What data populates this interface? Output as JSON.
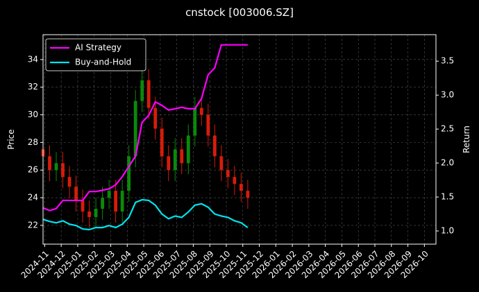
{
  "chart_data": {
    "type": "candlestick",
    "title": "cnstock [003006.SZ]",
    "ylabel": "Price",
    "y2label": "Return",
    "x": [
      -0.1,
      0.3,
      0.7,
      1.1,
      1.5,
      1.9,
      2.3,
      2.7,
      3.1,
      3.5,
      3.9,
      4.3,
      4.7,
      5.1,
      5.5,
      5.9,
      6.3,
      6.7,
      7.1,
      7.5,
      7.9,
      8.3,
      8.7,
      9.1,
      9.5,
      9.9,
      10.3,
      10.7,
      11.1,
      11.5,
      11.9,
      12.3
    ],
    "open": [
      27.5,
      27.0,
      26.0,
      26.5,
      25.5,
      24.8,
      23.8,
      23.0,
      22.6,
      23.2,
      24.0,
      24.5,
      23.0,
      24.5,
      27.0,
      31.0,
      32.5,
      30.5,
      29.0,
      27.0,
      26.0,
      27.5,
      26.5,
      28.5,
      30.5,
      30.0,
      28.5,
      27.0,
      26.0,
      25.5,
      25.0,
      24.5
    ],
    "high": [
      28.3,
      27.8,
      27.3,
      27.3,
      26.3,
      25.6,
      24.6,
      23.8,
      24.0,
      24.8,
      25.3,
      25.3,
      25.3,
      27.8,
      31.8,
      33.3,
      33.3,
      31.3,
      29.8,
      27.8,
      28.3,
      28.3,
      29.3,
      31.3,
      31.3,
      30.8,
      29.3,
      27.8,
      26.8,
      26.3,
      25.8,
      25.3
    ],
    "low": [
      26.2,
      25.2,
      25.2,
      24.7,
      24.0,
      23.0,
      22.2,
      21.8,
      21.8,
      22.4,
      23.2,
      22.2,
      22.2,
      23.7,
      26.2,
      30.2,
      29.7,
      28.2,
      26.2,
      25.2,
      25.2,
      25.7,
      25.7,
      27.7,
      29.2,
      27.7,
      26.2,
      25.2,
      24.7,
      24.2,
      23.7,
      23.2
    ],
    "close": [
      27.0,
      26.0,
      26.5,
      25.5,
      24.8,
      23.8,
      23.0,
      22.6,
      23.2,
      24.0,
      24.5,
      23.0,
      24.5,
      27.0,
      31.0,
      32.5,
      30.5,
      29.0,
      27.0,
      26.0,
      27.5,
      26.5,
      28.5,
      30.5,
      30.0,
      28.5,
      27.0,
      26.0,
      25.5,
      25.0,
      24.5,
      24.0
    ],
    "up_color": "#0a8a0a",
    "down_color": "#d81b0a",
    "series": [
      {
        "name": "AI Strategy",
        "color": "#ff00ff",
        "axis": "y2",
        "values": [
          1.34,
          1.3,
          1.33,
          1.45,
          1.45,
          1.45,
          1.45,
          1.58,
          1.58,
          1.6,
          1.62,
          1.68,
          1.8,
          1.95,
          2.1,
          2.6,
          2.7,
          2.9,
          2.85,
          2.78,
          2.8,
          2.82,
          2.8,
          2.8,
          2.95,
          3.3,
          3.4,
          3.74,
          3.74,
          3.74,
          3.74,
          3.74
        ]
      },
      {
        "name": "Buy-and-Hold",
        "color": "#00e5ee",
        "axis": "y2",
        "values": [
          1.17,
          1.14,
          1.12,
          1.15,
          1.1,
          1.08,
          1.03,
          1.02,
          1.05,
          1.05,
          1.08,
          1.05,
          1.1,
          1.2,
          1.42,
          1.46,
          1.45,
          1.38,
          1.25,
          1.18,
          1.22,
          1.2,
          1.28,
          1.38,
          1.4,
          1.35,
          1.25,
          1.22,
          1.2,
          1.15,
          1.12,
          1.05
        ]
      }
    ],
    "xlim": [
      -0.1,
      23.7
    ],
    "xticks": [
      {
        "value": 0,
        "label": "2024-11"
      },
      {
        "value": 1,
        "label": "2024-12"
      },
      {
        "value": 2,
        "label": "2025-01"
      },
      {
        "value": 3,
        "label": "2025-02"
      },
      {
        "value": 4,
        "label": "2025-03"
      },
      {
        "value": 5,
        "label": "2025-04"
      },
      {
        "value": 6,
        "label": "2025-05"
      },
      {
        "value": 7,
        "label": "2025-06"
      },
      {
        "value": 8,
        "label": "2025-07"
      },
      {
        "value": 9,
        "label": "2025-08"
      },
      {
        "value": 10,
        "label": "2025-09"
      },
      {
        "value": 11,
        "label": "2025-10"
      },
      {
        "value": 12,
        "label": "2025-11"
      },
      {
        "value": 13,
        "label": "2025-12"
      },
      {
        "value": 14,
        "label": "2026-01"
      },
      {
        "value": 15,
        "label": "2026-02"
      },
      {
        "value": 16,
        "label": "2026-03"
      },
      {
        "value": 17,
        "label": "2026-04"
      },
      {
        "value": 18,
        "label": "2026-05"
      },
      {
        "value": 19,
        "label": "2026-06"
      },
      {
        "value": 20,
        "label": "2026-07"
      },
      {
        "value": 21,
        "label": "2026-08"
      },
      {
        "value": 22,
        "label": "2026-09"
      },
      {
        "value": 23,
        "label": "2026-10"
      }
    ],
    "ylim": [
      20.64,
      35.8
    ],
    "yticks": [
      22,
      24,
      26,
      28,
      30,
      32,
      34
    ],
    "y2lim": [
      0.806,
      3.89
    ],
    "y2ticks": [
      {
        "value": 1,
        "label": "1.0"
      },
      {
        "value": 1.5,
        "label": "1.5"
      },
      {
        "value": 2,
        "label": "2.0"
      },
      {
        "value": 2.5,
        "label": "2.5"
      },
      {
        "value": 3,
        "label": "3.0"
      },
      {
        "value": 3.5,
        "label": "3.5"
      }
    ],
    "grid": true,
    "legend": "upper-left"
  }
}
